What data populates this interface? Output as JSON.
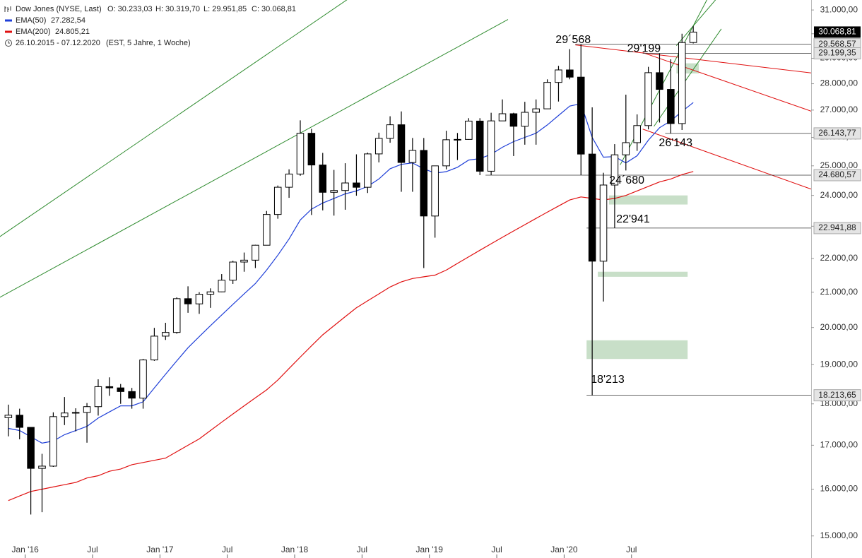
{
  "chart_data": {
    "type": "candlestick",
    "title": "Dow Jones (NYSE, Last)",
    "ohlc_text": [
      "O: 30.233,03",
      "H: 30.319,70",
      "L: 29.951,85",
      "C: 30.068,81"
    ],
    "period": "26.10.2015 - 07.12.2020",
    "period_note": "(EST, 5 Jahre, 1 Woche)",
    "log_scale": true,
    "x": [
      "2015-11",
      "2015-12",
      "2016-01",
      "2016-02",
      "2016-03",
      "2016-04",
      "2016-05",
      "2016-06",
      "2016-07",
      "2016-08",
      "2016-09",
      "2016-10",
      "2016-11",
      "2016-12",
      "2017-01",
      "2017-02",
      "2017-03",
      "2017-04",
      "2017-05",
      "2017-06",
      "2017-07",
      "2017-08",
      "2017-09",
      "2017-10",
      "2017-11",
      "2017-12",
      "2018-01",
      "2018-02",
      "2018-03",
      "2018-04",
      "2018-05",
      "2018-06",
      "2018-07",
      "2018-08",
      "2018-09",
      "2018-10",
      "2018-11",
      "2018-12",
      "2019-01",
      "2019-02",
      "2019-03",
      "2019-04",
      "2019-05",
      "2019-06",
      "2019-07",
      "2019-08",
      "2019-09",
      "2019-10",
      "2019-11",
      "2019-12",
      "2020-01",
      "2020-02",
      "2020-03",
      "2020-04",
      "2020-05",
      "2020-06",
      "2020-07",
      "2020-08",
      "2020-09",
      "2020-10",
      "2020-11",
      "2020-12"
    ],
    "open": [
      17660,
      17720,
      17425,
      16466,
      16517,
      17685,
      17774,
      17787,
      17930,
      18432,
      18401,
      18308,
      18142,
      19124,
      19763,
      19864,
      20812,
      20663,
      20940,
      21009,
      21350,
      21891,
      21948,
      22405,
      23377,
      24272,
      24719,
      26149,
      25029,
      24103,
      24163,
      24416,
      24271,
      25415,
      25965,
      26458,
      25116,
      25538,
      23327,
      24999,
      25916,
      25929,
      26593,
      24815,
      26600,
      26864,
      26403,
      26917,
      27046,
      28051,
      28538,
      28256,
      25409,
      21917,
      24346,
      25383,
      25813,
      26428,
      28430,
      27782,
      26502,
      29638
    ],
    "high": [
      17980,
      17880,
      17425,
      16800,
      17790,
      18170,
      17890,
      18020,
      18620,
      18670,
      18500,
      18400,
      19150,
      19990,
      20130,
      20850,
      21170,
      21000,
      21110,
      21530,
      21930,
      22180,
      22420,
      23490,
      24330,
      24880,
      26620,
      26310,
      25450,
      24860,
      25090,
      25400,
      25460,
      26170,
      26770,
      26950,
      25980,
      25980,
      25000,
      26240,
      26160,
      26700,
      26700,
      26900,
      27400,
      26900,
      27310,
      27400,
      28170,
      28700,
      29370,
      29568,
      27100,
      24760,
      25760,
      27580,
      26840,
      28660,
      29199,
      28960,
      30000,
      30320
    ],
    "low": [
      17210,
      17140,
      15450,
      15500,
      16500,
      17480,
      17330,
      17060,
      17710,
      18200,
      18000,
      17880,
      17880,
      19100,
      19660,
      19830,
      20410,
      20380,
      20550,
      21000,
      21240,
      21600,
      21710,
      22400,
      23240,
      23920,
      24660,
      23360,
      23510,
      23340,
      23530,
      23990,
      24080,
      25120,
      25810,
      24120,
      24120,
      21710,
      22640,
      24880,
      25200,
      25920,
      24680,
      24680,
      26600,
      25340,
      25740,
      25740,
      27040,
      27320,
      28170,
      24680,
      18213,
      20730,
      22941,
      24840,
      25520,
      26290,
      26540,
      26143,
      26270,
      29600
    ],
    "close": [
      17720,
      17425,
      16466,
      16517,
      17685,
      17774,
      17787,
      17930,
      18432,
      18401,
      18308,
      18142,
      19124,
      19763,
      19864,
      20812,
      20663,
      20940,
      21009,
      21350,
      21891,
      21948,
      22405,
      23377,
      24272,
      24719,
      26149,
      25029,
      24103,
      24163,
      24416,
      24271,
      25415,
      25965,
      26458,
      25116,
      25538,
      23327,
      24999,
      25916,
      25929,
      26593,
      24815,
      26600,
      26864,
      26403,
      26917,
      27046,
      28051,
      28538,
      28256,
      25409,
      21917,
      24346,
      25383,
      25813,
      26428,
      28430,
      27782,
      26502,
      29638,
      30069
    ],
    "series": [
      {
        "name": "EMA(50)",
        "value_label": "27.282,54",
        "color": "#1f3fd8",
        "values": [
          17400,
          17350,
          17200,
          17050,
          17100,
          17250,
          17350,
          17450,
          17650,
          17800,
          17950,
          17950,
          18050,
          18400,
          18750,
          19100,
          19450,
          19750,
          20050,
          20350,
          20650,
          20950,
          21250,
          21650,
          22100,
          22600,
          23200,
          23550,
          23750,
          23900,
          24050,
          24150,
          24300,
          24550,
          24900,
          25050,
          25100,
          24900,
          24750,
          24800,
          24950,
          25200,
          25250,
          25400,
          25650,
          25850,
          26000,
          26150,
          26450,
          26800,
          27150,
          27240,
          26000,
          25300,
          25320,
          25100,
          25350,
          25900,
          26350,
          26600,
          26950,
          27282.54
        ]
      },
      {
        "name": "EMA(200)",
        "value_label": "24.805,21",
        "color": "#e01010",
        "values": [
          15750,
          15850,
          15950,
          16000,
          16050,
          16100,
          16150,
          16250,
          16300,
          16400,
          16450,
          16550,
          16600,
          16650,
          16700,
          16850,
          17000,
          17150,
          17350,
          17550,
          17750,
          17950,
          18150,
          18350,
          18600,
          18900,
          19200,
          19500,
          19800,
          20050,
          20300,
          20550,
          20750,
          20950,
          21150,
          21300,
          21400,
          21450,
          21500,
          21650,
          21850,
          22050,
          22250,
          22450,
          22650,
          22850,
          23050,
          23250,
          23450,
          23650,
          23850,
          23950,
          23900,
          23850,
          23900,
          24000,
          24150,
          24300,
          24450,
          24550,
          24700,
          24805.21
        ]
      }
    ],
    "xlim": [
      "2015-10",
      "2021-11"
    ],
    "xticks": [
      {
        "value": "2016-01",
        "label": "Jan '16"
      },
      {
        "value": "2016-07",
        "label": "Jul"
      },
      {
        "value": "2017-01",
        "label": "Jan '17"
      },
      {
        "value": "2017-07",
        "label": "Jul"
      },
      {
        "value": "2018-01",
        "label": "Jan '18"
      },
      {
        "value": "2018-07",
        "label": "Jul"
      },
      {
        "value": "2019-01",
        "label": "Jan '19"
      },
      {
        "value": "2019-07",
        "label": "Jul"
      },
      {
        "value": "2020-01",
        "label": "Jan '20"
      },
      {
        "value": "2020-07",
        "label": "Jul"
      }
    ],
    "ylim": [
      14550,
      31430
    ],
    "yticks": [
      {
        "value": 15000,
        "label": "15.000,00"
      },
      {
        "value": 16000,
        "label": "16.000,00"
      },
      {
        "value": 17000,
        "label": "17.000,00"
      },
      {
        "value": 18000,
        "label": "18.000,00"
      },
      {
        "value": 19000,
        "label": "19.000,00"
      },
      {
        "value": 20000,
        "label": "20.000,00"
      },
      {
        "value": 21000,
        "label": "21.000,00"
      },
      {
        "value": 22000,
        "label": "22.000,00"
      },
      {
        "value": 23000,
        "label": "23.000,00"
      },
      {
        "value": 24000,
        "label": "24.000,00"
      },
      {
        "value": 25000,
        "label": "25.000,00"
      },
      {
        "value": 26000,
        "label": "26.000,00"
      },
      {
        "value": 27000,
        "label": "27.000,00"
      },
      {
        "value": 28000,
        "label": "28.000,00"
      },
      {
        "value": 29000,
        "label": "29.000,00"
      },
      {
        "value": 30000,
        "label": "30.000,00"
      },
      {
        "value": 31000,
        "label": "31.000,00"
      }
    ],
    "last": {
      "value": 30068.81,
      "label": "30.068,81"
    },
    "levels": [
      {
        "value": 29568.57,
        "label": "29´568",
        "axis_label": "29.568,57",
        "from": "2020-02"
      },
      {
        "value": 29199.35,
        "label": "29'199",
        "axis_label": "29.199,35",
        "from": "2020-08"
      },
      {
        "value": 26143.77,
        "label": "26'143",
        "axis_label": "26.143,77",
        "from": "2020-10"
      },
      {
        "value": 24680.57,
        "label": "24´680",
        "axis_label": "24.680,57",
        "from": "2019-06"
      },
      {
        "value": 22941.88,
        "label": "22'941",
        "axis_label": "22.941,88",
        "from": "2020-03"
      },
      {
        "value": 18213.65,
        "label": "18'213",
        "axis_label": "18.213,65",
        "from": "2020-03"
      }
    ],
    "zones": [
      {
        "from": "2020-11",
        "to": "2021-01",
        "low": 28400,
        "high": 28800,
        "color": "#c8dfc8"
      },
      {
        "from": "2020-05",
        "to": "2020-12",
        "low": 23700,
        "high": 24000,
        "color": "#c8dfc8"
      },
      {
        "from": "2020-04",
        "to": "2020-12",
        "low": 21450,
        "high": 21600,
        "color": "#c8dfc8"
      },
      {
        "from": "2020-03",
        "to": "2020-12",
        "low": 19150,
        "high": 19650,
        "color": "#c8dfc8"
      }
    ],
    "trendlines": [
      {
        "color": "#2e8b2e",
        "x": [
          "2015-10",
          "2018-07"
        ],
        "values": [
          22495,
          31889
        ]
      },
      {
        "color": "#2e8b2e",
        "x": [
          "2015-10",
          "2019-08"
        ],
        "values": [
          20720,
          30595
        ]
      },
      {
        "color": "#2e8b2e",
        "x": [
          "2020-06",
          "2021-02"
        ],
        "values": [
          25036,
          31700
        ]
      },
      {
        "color": "#2e8b2e",
        "x": [
          "2020-09",
          "2021-03"
        ],
        "values": [
          26400,
          30200
        ]
      },
      {
        "color": "#2e8b2e",
        "x": [
          "2020-11",
          "2021-03"
        ],
        "values": [
          29510,
          31730
        ]
      },
      {
        "color": "#e01010",
        "x": [
          "2020-02",
          "2021-11"
        ],
        "values": [
          29540,
          28420
        ]
      },
      {
        "color": "#e01010",
        "x": [
          "2020-08",
          "2021-11"
        ],
        "values": [
          29230,
          26960
        ]
      },
      {
        "color": "#e01010",
        "x": [
          "2020-08",
          "2021-11"
        ],
        "values": [
          26300,
          24210
        ]
      }
    ]
  }
}
